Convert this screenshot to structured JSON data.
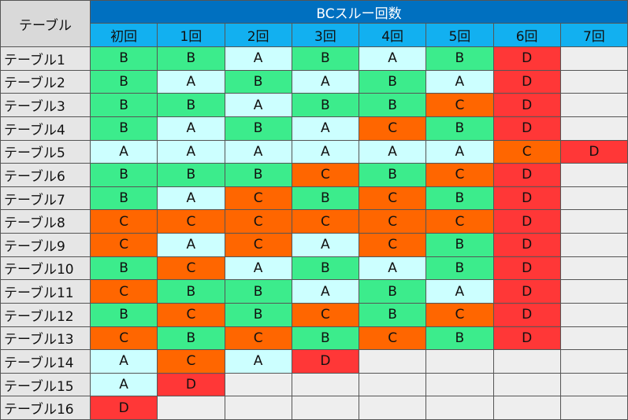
{
  "table": {
    "corner": "テーブル",
    "title": "BCスルー回数",
    "columns": [
      "初回",
      "1回",
      "2回",
      "3回",
      "4回",
      "5回",
      "6回",
      "7回"
    ],
    "cell_colors": {
      "A": "#ccffff",
      "B": "#3cec8c",
      "C": "#ff6600",
      "D": "#ff3737"
    },
    "empty_color": "#eeeeee",
    "rows": [
      {
        "name": "テーブル1",
        "cells": [
          "B",
          "B",
          "A",
          "B",
          "A",
          "B",
          "D"
        ]
      },
      {
        "name": "テーブル2",
        "cells": [
          "B",
          "A",
          "B",
          "A",
          "B",
          "A",
          "D"
        ]
      },
      {
        "name": "テーブル3",
        "cells": [
          "B",
          "B",
          "A",
          "B",
          "B",
          "C",
          "D"
        ]
      },
      {
        "name": "テーブル4",
        "cells": [
          "B",
          "A",
          "B",
          "A",
          "C",
          "B",
          "D"
        ]
      },
      {
        "name": "テーブル5",
        "cells": [
          "A",
          "A",
          "A",
          "A",
          "A",
          "A",
          "C",
          "D"
        ]
      },
      {
        "name": "テーブル6",
        "cells": [
          "B",
          "B",
          "B",
          "C",
          "B",
          "C",
          "D"
        ]
      },
      {
        "name": "テーブル7",
        "cells": [
          "B",
          "A",
          "C",
          "B",
          "C",
          "B",
          "D"
        ]
      },
      {
        "name": "テーブル8",
        "cells": [
          "C",
          "C",
          "C",
          "C",
          "C",
          "C",
          "D"
        ]
      },
      {
        "name": "テーブル9",
        "cells": [
          "C",
          "A",
          "C",
          "A",
          "C",
          "B",
          "D"
        ]
      },
      {
        "name": "テーブル10",
        "cells": [
          "B",
          "C",
          "A",
          "B",
          "A",
          "B",
          "D"
        ]
      },
      {
        "name": "テーブル11",
        "cells": [
          "C",
          "B",
          "B",
          "A",
          "B",
          "A",
          "D"
        ]
      },
      {
        "name": "テーブル12",
        "cells": [
          "B",
          "C",
          "B",
          "C",
          "B",
          "C",
          "D"
        ]
      },
      {
        "name": "テーブル13",
        "cells": [
          "C",
          "B",
          "C",
          "B",
          "C",
          "B",
          "D"
        ]
      },
      {
        "name": "テーブル14",
        "cells": [
          "A",
          "C",
          "A",
          "D"
        ]
      },
      {
        "name": "テーブル15",
        "cells": [
          "A",
          "D"
        ]
      },
      {
        "name": "テーブル16",
        "cells": [
          "D"
        ]
      }
    ]
  }
}
